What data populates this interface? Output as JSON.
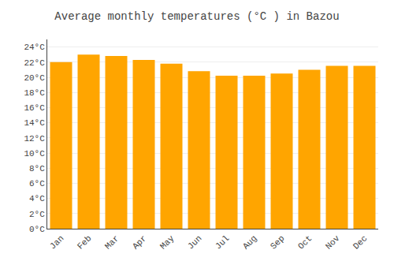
{
  "chart_data": {
    "type": "bar",
    "title": "Average monthly temperatures (°C ) in Bazou",
    "categories": [
      "Jan",
      "Feb",
      "Mar",
      "Apr",
      "May",
      "Jun",
      "Jul",
      "Aug",
      "Sep",
      "Oct",
      "Nov",
      "Dec"
    ],
    "values": [
      22.0,
      23.0,
      22.8,
      22.3,
      21.8,
      20.8,
      20.2,
      20.2,
      20.5,
      21.0,
      21.5,
      21.5
    ],
    "color": "#FFA500",
    "ylim": [
      0,
      25
    ],
    "yticks": [
      {
        "value": 0,
        "label": "0°C"
      },
      {
        "value": 2,
        "label": "2°C"
      },
      {
        "value": 4,
        "label": "4°C"
      },
      {
        "value": 6,
        "label": "6°C"
      },
      {
        "value": 8,
        "label": "8°C"
      },
      {
        "value": 10,
        "label": "10°C"
      },
      {
        "value": 12,
        "label": "12°C"
      },
      {
        "value": 14,
        "label": "14°C"
      },
      {
        "value": 16,
        "label": "16°C"
      },
      {
        "value": 18,
        "label": "18°C"
      },
      {
        "value": 20,
        "label": "20°C"
      },
      {
        "value": 22,
        "label": "22°C"
      },
      {
        "value": 24,
        "label": "24°C"
      }
    ],
    "grid": true
  }
}
